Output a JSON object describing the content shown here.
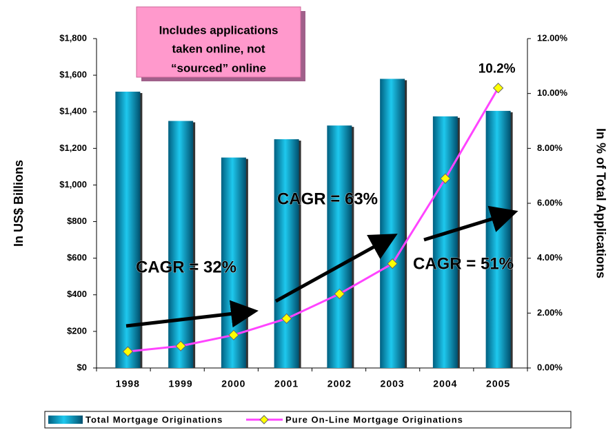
{
  "chart_data": {
    "type": "bar_line",
    "categories": [
      "1998",
      "1999",
      "2000",
      "2001",
      "2002",
      "2003",
      "2004",
      "2005"
    ],
    "series": [
      {
        "name": "Total Mortgage Originations",
        "color": "#0fa3c8",
        "values": [
          1510,
          1350,
          1150,
          1250,
          1325,
          1580,
          1375,
          1405
        ]
      },
      {
        "name": "Pure On-Line Mortgage Originations",
        "color": "#ff44ff",
        "marker_color": "#ffff00",
        "axis": "y2",
        "values": [
          0.6,
          0.8,
          1.2,
          1.8,
          2.7,
          3.8,
          6.9,
          10.2
        ],
        "value_labels": [
          null,
          null,
          null,
          null,
          null,
          null,
          null,
          "10.2%"
        ]
      }
    ],
    "ylabel": "In US$ Billions",
    "y2label": "In % of Total Applications",
    "ylim": [
      0,
      1800
    ],
    "yticks": [
      {
        "value": 0,
        "label": "$0"
      },
      {
        "value": 200,
        "label": "$200"
      },
      {
        "value": 400,
        "label": "$400"
      },
      {
        "value": 600,
        "label": "$600"
      },
      {
        "value": 800,
        "label": "$800"
      },
      {
        "value": 1000,
        "label": "$1,000"
      },
      {
        "value": 1200,
        "label": "$1,200"
      },
      {
        "value": 1400,
        "label": "$1,400"
      },
      {
        "value": 1600,
        "label": "$1,600"
      },
      {
        "value": 1800,
        "label": "$1,800"
      }
    ],
    "y2lim": [
      0,
      12
    ],
    "y2ticks": [
      {
        "value": 0,
        "label": "0.00%"
      },
      {
        "value": 2,
        "label": "2.00%"
      },
      {
        "value": 4,
        "label": "4.00%"
      },
      {
        "value": 6,
        "label": "6.00%"
      },
      {
        "value": 8,
        "label": "8.00%"
      },
      {
        "value": 10,
        "label": "10.00%"
      },
      {
        "value": 12,
        "label": "12.00%"
      }
    ],
    "note_lines": [
      "Includes applications",
      "taken online, not",
      "“sourced” online"
    ],
    "annotations": [
      "CAGR = 32%",
      "CAGR = 63%",
      "CAGR = 51%"
    ],
    "legend": "bottom"
  }
}
